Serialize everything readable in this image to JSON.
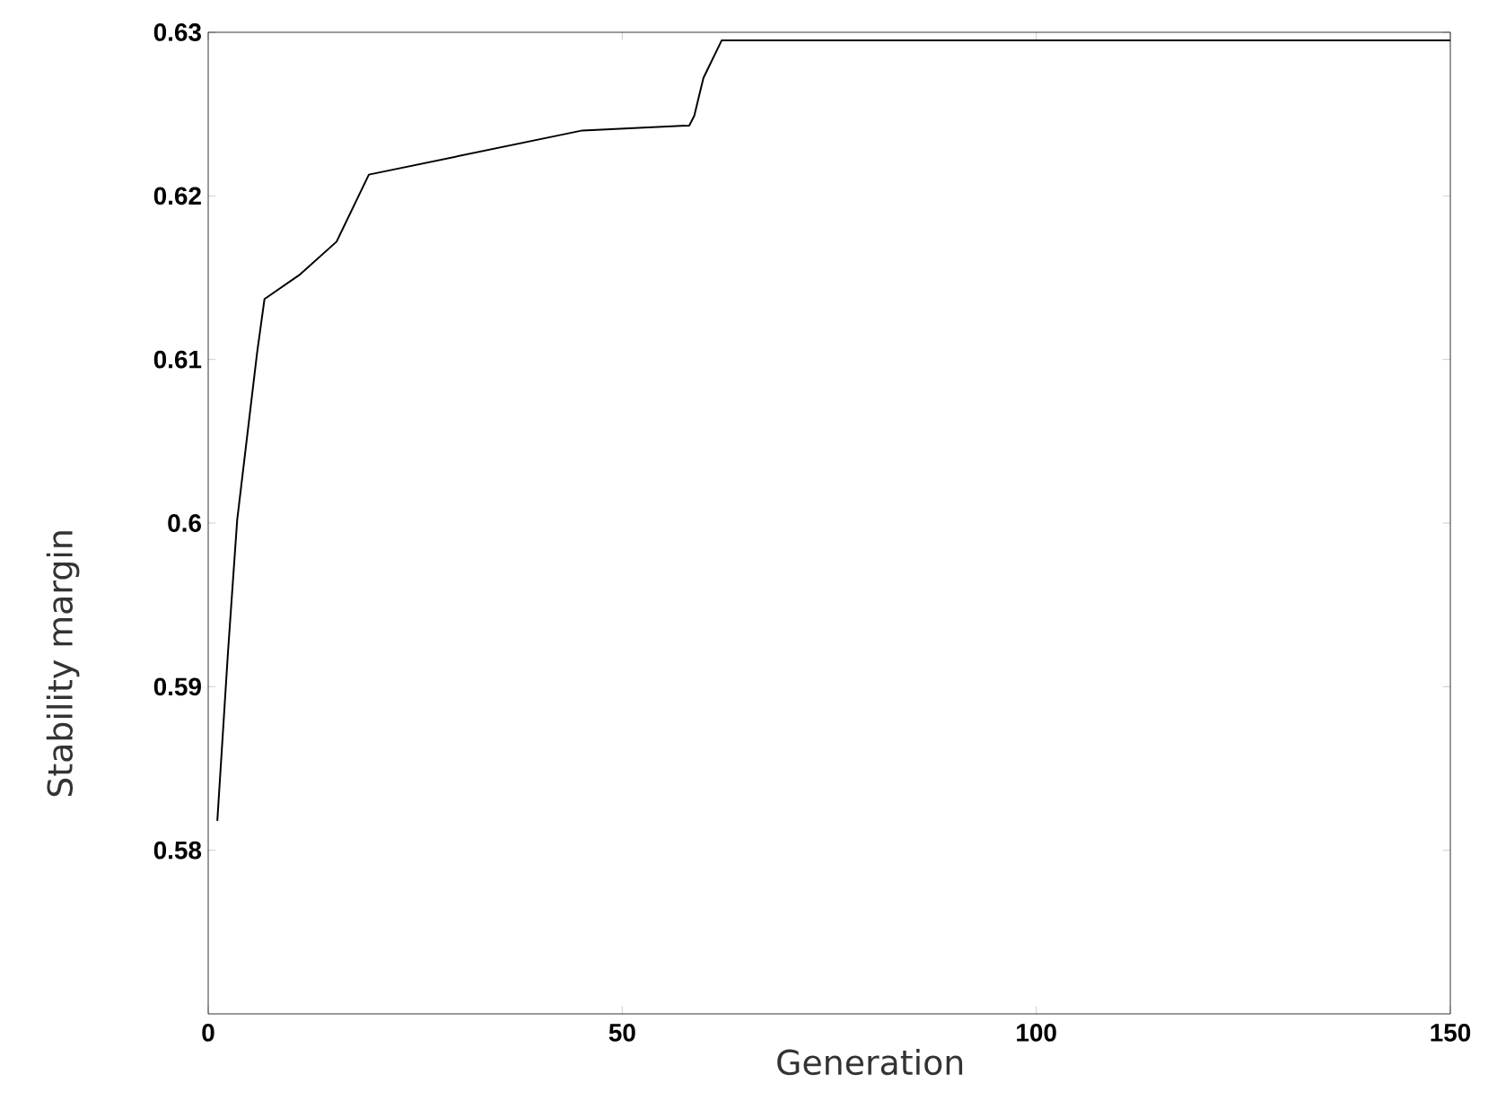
{
  "chart_data": {
    "type": "line",
    "xlabel": "Generation",
    "ylabel": "Stability margin",
    "x": [
      1.1,
      2.4,
      3.5,
      5.9,
      6.8,
      11.1,
      15.5,
      19.4,
      45.2,
      58.1,
      58.7,
      59.8,
      62,
      150
    ],
    "series": [
      {
        "color": "#000000",
        "values": [
          0.5818,
          0.5922,
          0.6002,
          0.6104,
          0.6137,
          0.6152,
          0.6172,
          0.6213,
          0.624,
          0.6243,
          0.6249,
          0.6272,
          0.6295,
          0.6295
        ]
      }
    ],
    "marker": "none",
    "xlim": [
      0,
      150
    ],
    "ylim": [
      0.57,
      0.63
    ],
    "xticks": [
      0,
      50,
      100,
      150
    ],
    "yticks": [
      0.58,
      0.59,
      0.6,
      0.61,
      0.62,
      0.63
    ]
  }
}
